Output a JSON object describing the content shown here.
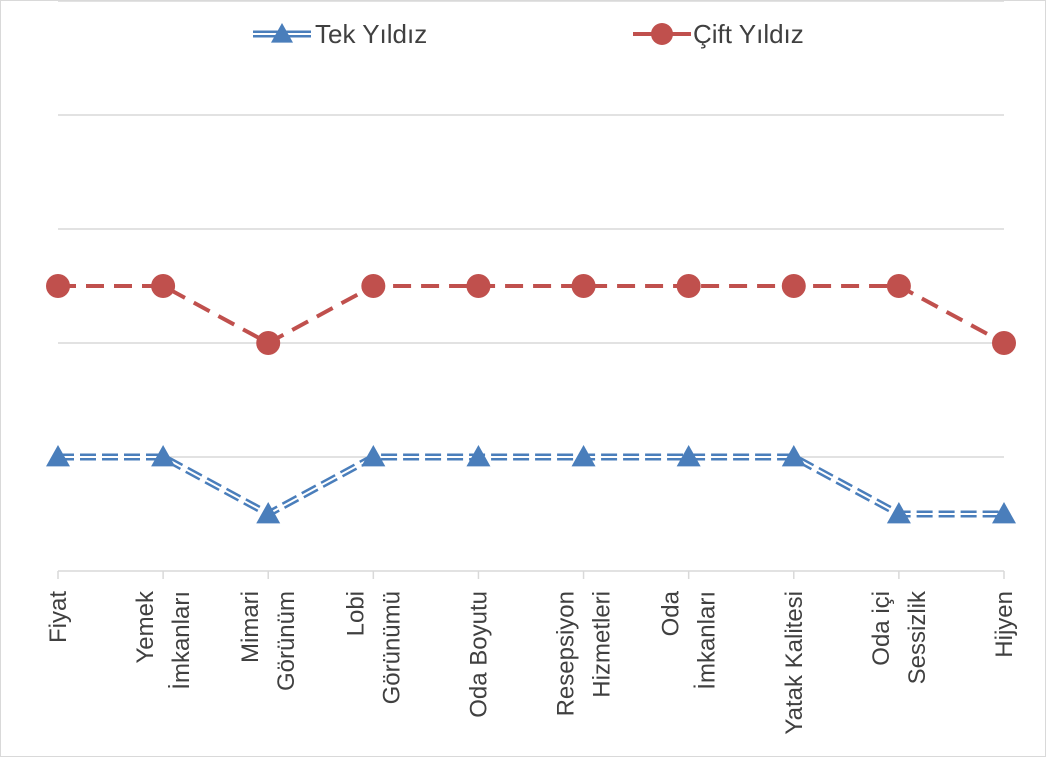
{
  "chart_data": {
    "type": "line",
    "categories": [
      [
        "Fiyat"
      ],
      [
        "Yemek",
        "İmkanları"
      ],
      [
        "Mimari",
        "Görünüm"
      ],
      [
        "Lobi",
        "Görünümü"
      ],
      [
        "Oda Boyutu"
      ],
      [
        "Resepsiyon",
        "Hizmetleri"
      ],
      [
        "Oda",
        "İmkanları"
      ],
      [
        "Yatak Kalitesi"
      ],
      [
        "Oda içi",
        "Sessizlik"
      ],
      [
        "Hijyen"
      ]
    ],
    "series": [
      {
        "name": "Tek Yıldız",
        "values": [
          2,
          2,
          1,
          2,
          2,
          2,
          2,
          2,
          1,
          1
        ],
        "color": "#4a7ebb",
        "marker": "triangle",
        "line_style": "double"
      },
      {
        "name": "Çift Yıldız",
        "values": [
          5,
          5,
          4,
          5,
          5,
          5,
          5,
          5,
          5,
          4
        ],
        "color": "#c0504d",
        "marker": "circle",
        "line_style": "dashed"
      }
    ],
    "ylim": [
      0,
      10
    ],
    "y_tick_step": 2,
    "grid": true,
    "axis_labels_visible": false,
    "legend_position": "top"
  }
}
